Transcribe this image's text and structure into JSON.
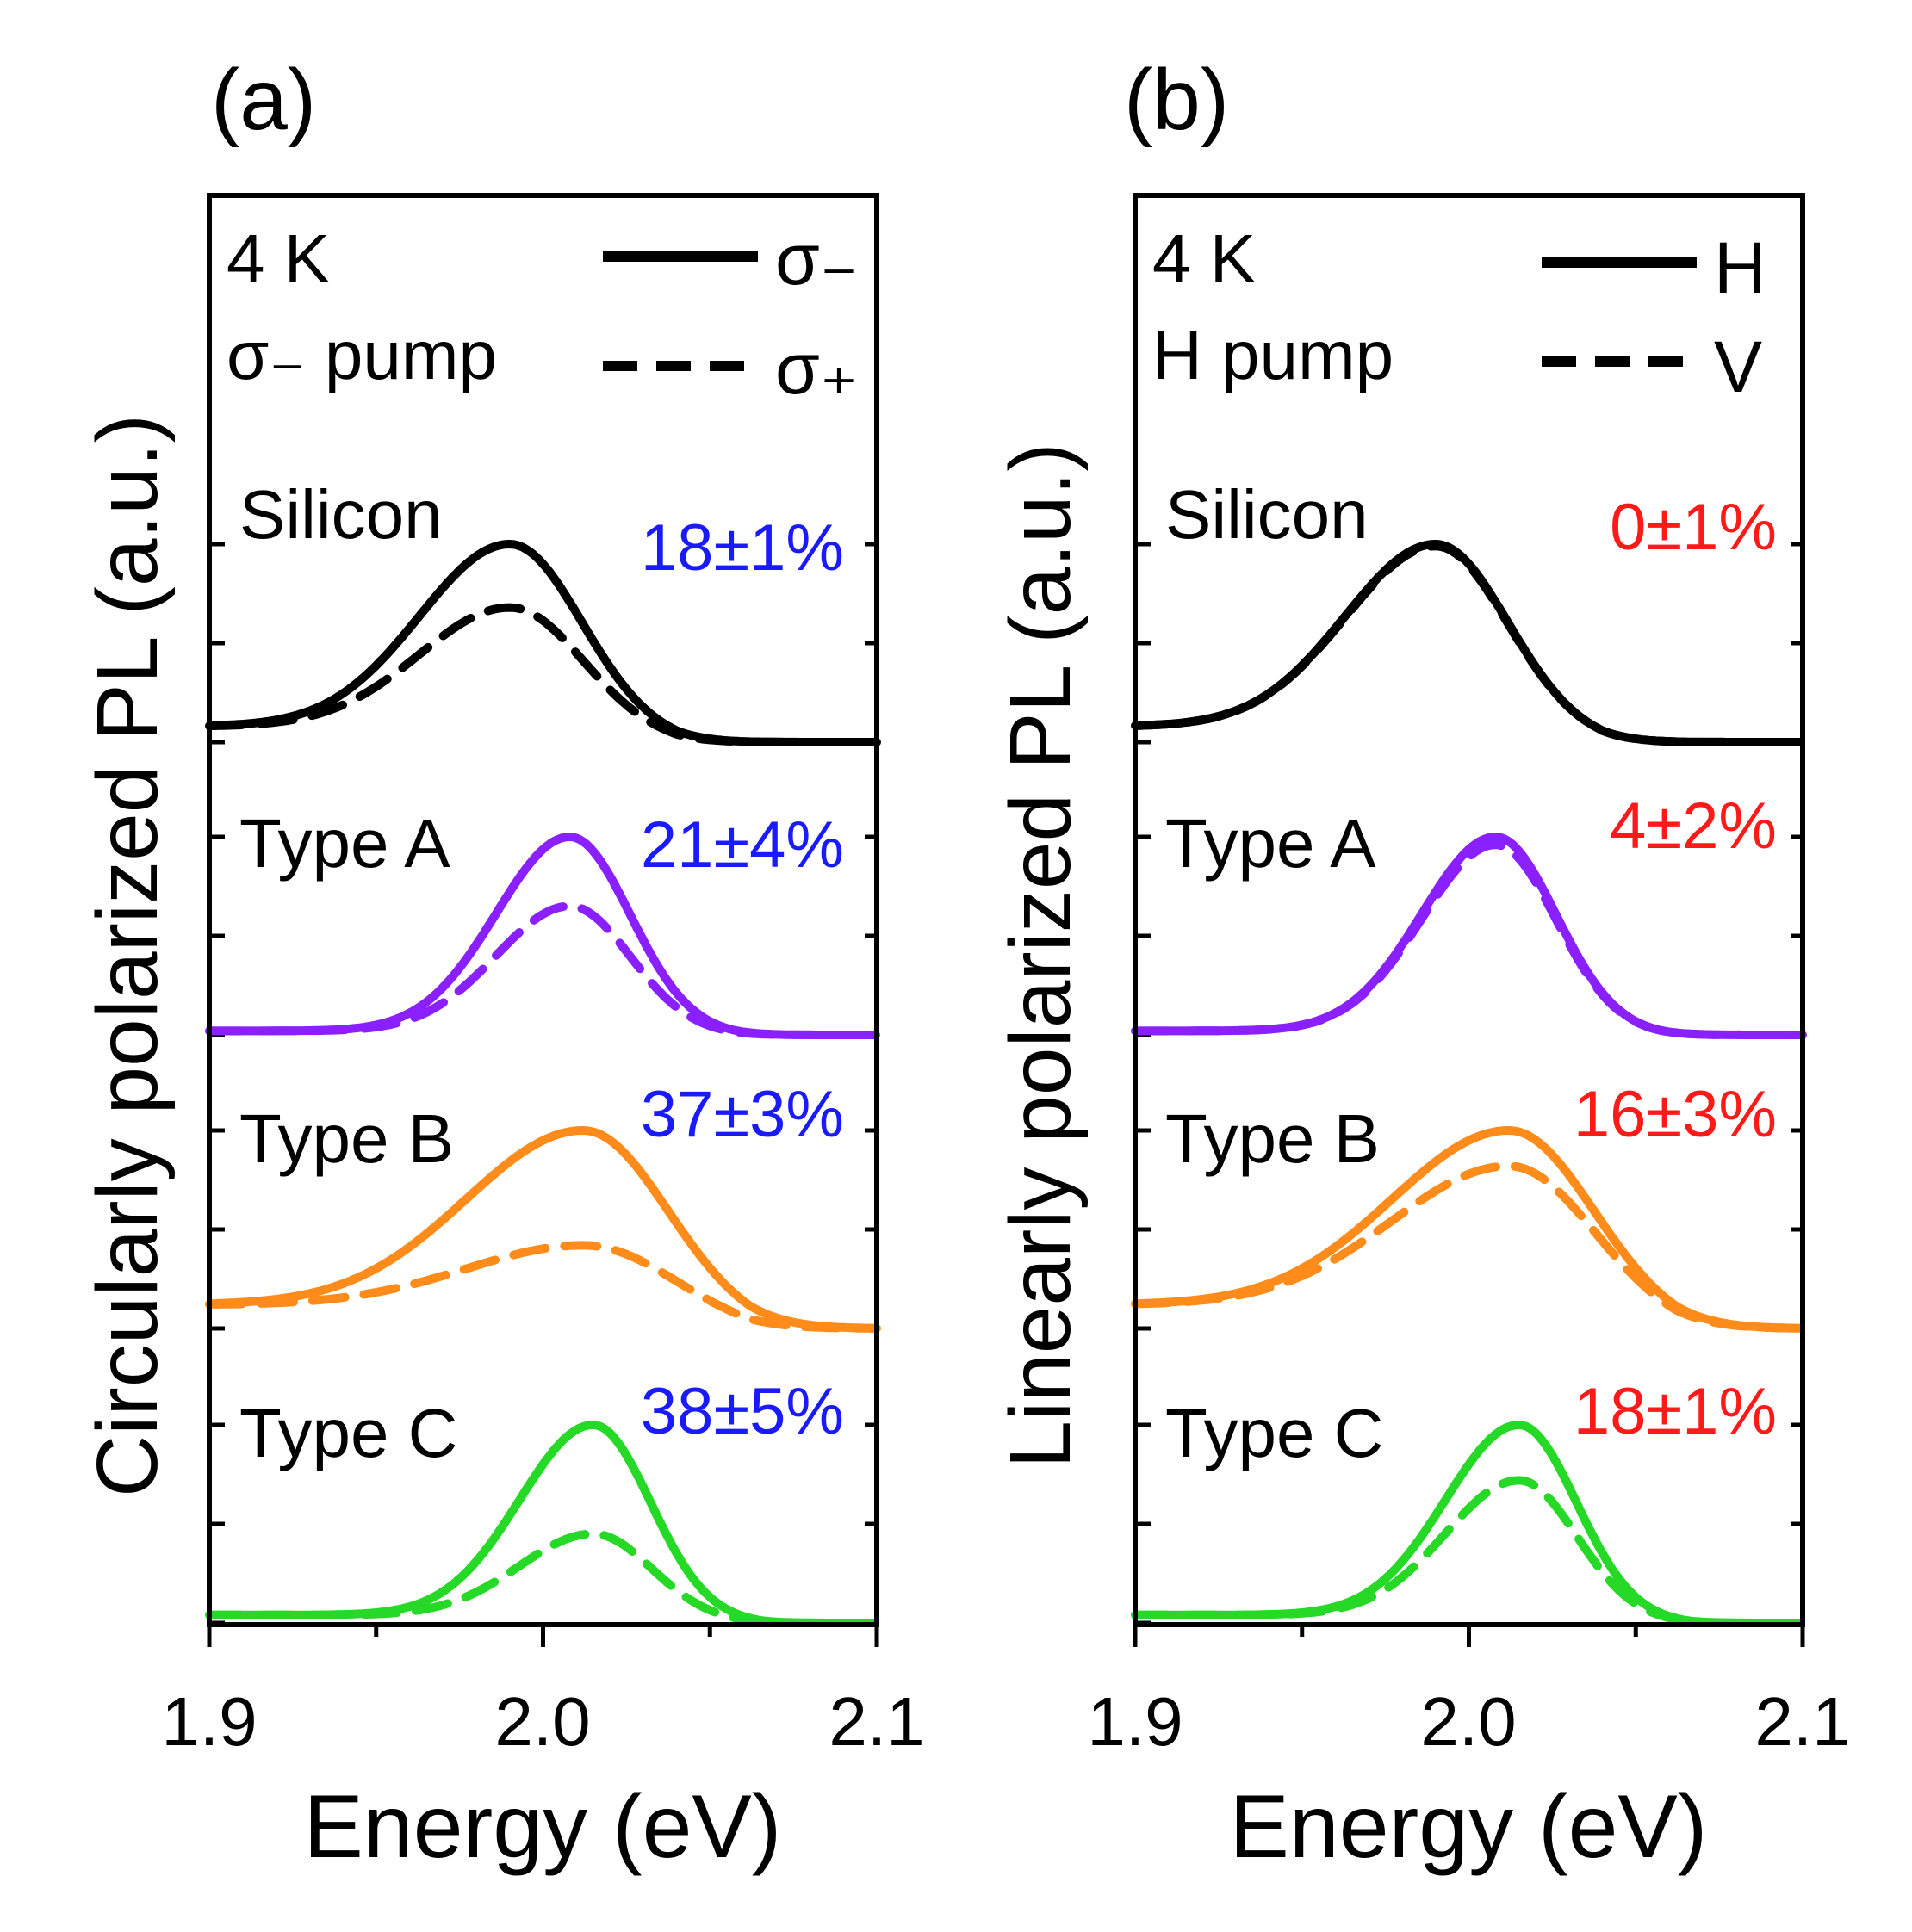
{
  "figure": {
    "panels": [
      {
        "panel_label": "(a)",
        "ylabel": "Circularly polarized PL (a.u.)",
        "xlabel": "Energy (eV)",
        "xticks": [
          "1.9",
          "2.0",
          "2.1"
        ],
        "temperature": "4 K",
        "pump": "σ₋ pump",
        "legend": {
          "solid": "σ₋",
          "dashed": "σ₊"
        },
        "samples": [
          {
            "label": "Silicon",
            "dop": "18±1%"
          },
          {
            "label": "Type A",
            "dop": "21±4%"
          },
          {
            "label": "Type B",
            "dop": "37±3%"
          },
          {
            "label": "Type C",
            "dop": "38±5%"
          }
        ]
      },
      {
        "panel_label": "(b)",
        "ylabel": "Linearly polarized PL (a.u.)",
        "xlabel": "Energy (eV)",
        "xticks": [
          "1.9",
          "2.0",
          "2.1"
        ],
        "temperature": "4 K",
        "pump": "H pump",
        "legend": {
          "solid": "H",
          "dashed": "V"
        },
        "samples": [
          {
            "label": "Silicon",
            "dop": "0±1%"
          },
          {
            "label": "Type A",
            "dop": "4±2%"
          },
          {
            "label": "Type B",
            "dop": "16±3%"
          },
          {
            "label": "Type C",
            "dop": "18±1%"
          }
        ]
      }
    ]
  },
  "chart_data": [
    {
      "type": "line",
      "title": "(a)",
      "xlabel": "Energy (eV)",
      "ylabel": "Circularly polarized PL (a.u.)",
      "xlim": [
        1.9,
        2.1
      ],
      "xticks": [
        1.9,
        2.0,
        2.1
      ],
      "annotation_color": "#1a1aff",
      "legend": [
        "σ₋ (solid)",
        "σ₊ (dashed)"
      ],
      "series": [
        {
          "sample": "Silicon",
          "color": "#000000",
          "dop": "18±1%",
          "baseline": 0.08,
          "solid_peak": 1.0,
          "dashed_peak": 0.68,
          "center": 1.99,
          "width_low": 0.027,
          "width_high": 0.021,
          "tail_floor": 0.0
        },
        {
          "sample": "Type A",
          "color": "#8a1fff",
          "dop": "21±4%",
          "baseline": 0.02,
          "solid_peak": 1.0,
          "dashed_peak": 0.65,
          "center": 2.008,
          "width_low": 0.022,
          "width_high": 0.018,
          "tail_floor": 0.0
        },
        {
          "sample": "Type B",
          "color": "#ff8c1a",
          "dop": "37±3%",
          "baseline": 0.12,
          "solid_peak": 1.0,
          "dashed_peak": 0.42,
          "center": 2.012,
          "width_low": 0.035,
          "width_high": 0.024,
          "tail_floor": 0.0
        },
        {
          "sample": "Type C",
          "color": "#26d926",
          "dop": "38±5%",
          "baseline": 0.04,
          "solid_peak": 1.0,
          "dashed_peak": 0.45,
          "center": 2.015,
          "width_low": 0.022,
          "width_high": 0.017,
          "tail_floor": 0.0
        }
      ]
    },
    {
      "type": "line",
      "title": "(b)",
      "xlabel": "Energy (eV)",
      "ylabel": "Linearly polarized PL (a.u.)",
      "xlim": [
        1.9,
        2.1
      ],
      "xticks": [
        1.9,
        2.0,
        2.1
      ],
      "annotation_color": "#ff1a1a",
      "legend": [
        "H (solid)",
        "V (dashed)"
      ],
      "series": [
        {
          "sample": "Silicon",
          "color": "#000000",
          "dop": "0±1%",
          "baseline": 0.08,
          "solid_peak": 1.0,
          "dashed_peak": 0.99,
          "center": 1.99,
          "width_low": 0.027,
          "width_high": 0.021,
          "tail_floor": 0.0
        },
        {
          "sample": "Type A",
          "color": "#8a1fff",
          "dop": "4±2%",
          "baseline": 0.02,
          "solid_peak": 1.0,
          "dashed_peak": 0.96,
          "center": 2.008,
          "width_low": 0.022,
          "width_high": 0.018,
          "tail_floor": 0.0
        },
        {
          "sample": "Type B",
          "color": "#ff8c1a",
          "dop": "16±3%",
          "baseline": 0.12,
          "solid_peak": 1.0,
          "dashed_peak": 0.82,
          "center": 2.012,
          "width_low": 0.035,
          "width_high": 0.024,
          "tail_floor": 0.0
        },
        {
          "sample": "Type C",
          "color": "#26d926",
          "dop": "18±1%",
          "baseline": 0.04,
          "solid_peak": 1.0,
          "dashed_peak": 0.72,
          "center": 2.015,
          "width_low": 0.022,
          "width_high": 0.017,
          "tail_floor": 0.0
        }
      ]
    }
  ]
}
